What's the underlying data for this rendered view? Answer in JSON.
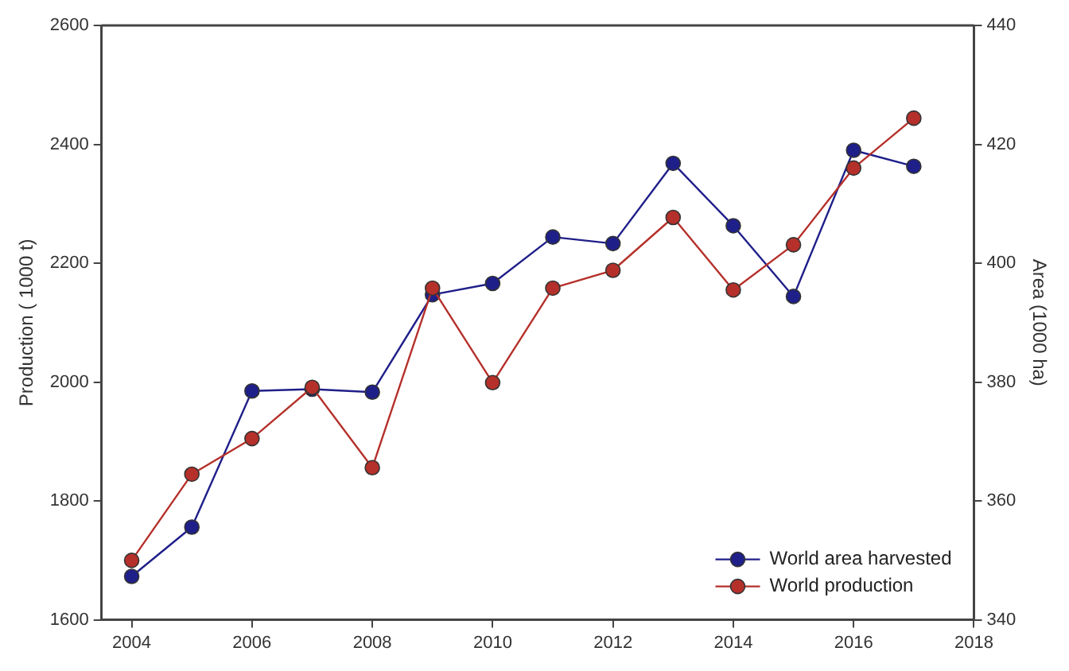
{
  "chart_data": {
    "type": "line",
    "ylabel": "Production ( 1000 t)",
    "y2label": "Area (1000 ha)",
    "x": [
      2004,
      2005,
      2006,
      2007,
      2008,
      2009,
      2010,
      2011,
      2012,
      2013,
      2014,
      2015,
      2016,
      2017
    ],
    "series": [
      {
        "name": "World area harvested",
        "color": "#1f1f8a",
        "axis": "y2",
        "values": [
          347.3,
          355.6,
          378.5,
          378.8,
          378.3,
          394.7,
          396.6,
          404.4,
          403.3,
          416.8,
          406.3,
          394.4,
          419,
          416.3
        ]
      },
      {
        "name": "World production",
        "color": "#b5302a",
        "values": [
          1700,
          1845,
          1905,
          1991,
          1856,
          2158,
          1999,
          2158,
          2188,
          2277,
          2155,
          2231,
          2360,
          2444
        ]
      }
    ],
    "xlim": [
      2003.5,
      2018
    ],
    "xticks": [
      2004,
      2006,
      2008,
      2010,
      2012,
      2014,
      2016,
      2018
    ],
    "ylim": [
      1600,
      2600
    ],
    "yticks": [
      1600,
      1800,
      2000,
      2200,
      2400,
      2600
    ],
    "y2lim": [
      340,
      440
    ],
    "y2ticks": [
      340,
      360,
      380,
      400,
      420,
      440
    ],
    "legend": "bottom right",
    "marker": "circle",
    "grid": false
  }
}
